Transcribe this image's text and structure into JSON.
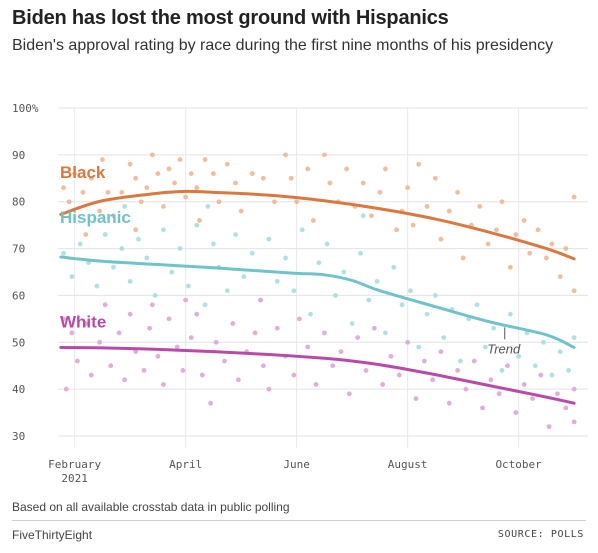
{
  "header": {
    "title": "Biden has lost the most ground with Hispanics",
    "subtitle": "Biden's approval rating by race during the first nine months of his presidency"
  },
  "footer": {
    "note": "Based on all available crosstab data in public polling",
    "brand": "FiveThirtyEight",
    "source": "SOURCE: POLLS"
  },
  "chart_data": {
    "type": "scatter",
    "title": "Biden has lost the most ground with Hispanics",
    "subtitle": "Biden's approval rating by race during the first nine months of his presidency",
    "xlabel": "",
    "ylabel": "",
    "x_unit": "month index (1 = February 1, 2021)",
    "xlim": [
      0.7,
      10.25
    ],
    "ylim": [
      30,
      100
    ],
    "y_ticks": [
      30,
      40,
      50,
      60,
      70,
      80,
      90,
      100
    ],
    "y_tick_labels": [
      "30",
      "40",
      "50",
      "60",
      "70",
      "80",
      "90",
      "100%"
    ],
    "x_ticks": [
      {
        "x": 1.0,
        "label": "February",
        "sublabel": "2021"
      },
      {
        "x": 3.0,
        "label": "April",
        "sublabel": ""
      },
      {
        "x": 5.0,
        "label": "June",
        "sublabel": ""
      },
      {
        "x": 7.0,
        "label": "August",
        "sublabel": ""
      },
      {
        "x": 9.0,
        "label": "October",
        "sublabel": ""
      }
    ],
    "grid": true,
    "annotation": "Trend",
    "series": [
      {
        "name": "Black",
        "color": "#d9783f",
        "dot_color": "#ecb793",
        "trend_x": [
          0.75,
          1.5,
          2.5,
          3.0,
          3.5,
          4.5,
          5.5,
          6.5,
          7.5,
          8.5,
          9.5,
          10.0
        ],
        "trend_y": [
          77.3,
          80.2,
          81.8,
          82.2,
          82.0,
          81.4,
          80.2,
          78.5,
          76.3,
          73.4,
          70.0,
          67.8
        ],
        "points": [
          [
            0.8,
            83
          ],
          [
            0.9,
            80
          ],
          [
            1.0,
            86
          ],
          [
            1.15,
            82
          ],
          [
            1.3,
            85
          ],
          [
            1.45,
            78
          ],
          [
            1.5,
            89
          ],
          [
            1.6,
            82
          ],
          [
            1.7,
            77
          ],
          [
            1.85,
            82
          ],
          [
            2.0,
            88
          ],
          [
            2.1,
            85
          ],
          [
            2.2,
            80
          ],
          [
            2.3,
            83
          ],
          [
            2.4,
            90
          ],
          [
            2.5,
            86
          ],
          [
            2.6,
            79
          ],
          [
            2.7,
            87
          ],
          [
            2.8,
            84
          ],
          [
            2.9,
            89
          ],
          [
            3.0,
            81
          ],
          [
            3.1,
            86
          ],
          [
            3.2,
            83
          ],
          [
            3.35,
            89
          ],
          [
            3.5,
            86
          ],
          [
            3.6,
            80
          ],
          [
            3.75,
            88
          ],
          [
            3.9,
            84
          ],
          [
            4.0,
            78
          ],
          [
            4.2,
            86
          ],
          [
            4.4,
            85
          ],
          [
            4.6,
            80
          ],
          [
            4.8,
            90
          ],
          [
            4.9,
            85
          ],
          [
            5.0,
            80
          ],
          [
            5.2,
            87
          ],
          [
            5.3,
            76
          ],
          [
            5.5,
            90
          ],
          [
            5.6,
            84
          ],
          [
            5.75,
            80
          ],
          [
            5.9,
            87
          ],
          [
            6.05,
            79
          ],
          [
            6.2,
            84
          ],
          [
            6.35,
            77
          ],
          [
            6.5,
            82
          ],
          [
            6.6,
            87
          ],
          [
            6.8,
            74
          ],
          [
            6.9,
            78
          ],
          [
            7.0,
            83
          ],
          [
            7.1,
            75
          ],
          [
            7.2,
            88
          ],
          [
            7.35,
            79
          ],
          [
            7.5,
            85
          ],
          [
            7.6,
            72
          ],
          [
            7.75,
            78
          ],
          [
            7.9,
            82
          ],
          [
            8.0,
            68
          ],
          [
            8.15,
            75
          ],
          [
            8.3,
            79
          ],
          [
            8.45,
            71
          ],
          [
            8.6,
            74
          ],
          [
            8.7,
            80
          ],
          [
            8.85,
            66
          ],
          [
            8.95,
            73
          ],
          [
            9.1,
            76
          ],
          [
            9.2,
            69
          ],
          [
            9.35,
            74
          ],
          [
            9.5,
            68
          ],
          [
            9.6,
            71
          ],
          [
            9.75,
            64
          ],
          [
            9.85,
            70
          ],
          [
            10.0,
            61
          ],
          [
            10.0,
            81
          ],
          [
            3.25,
            76
          ],
          [
            2.1,
            74
          ],
          [
            1.2,
            73
          ]
        ]
      },
      {
        "name": "Hispanic",
        "color": "#6fc3c9",
        "dot_color": "#a9dde1",
        "trend_x": [
          0.75,
          1.5,
          2.5,
          3.5,
          4.5,
          5.0,
          5.5,
          6.0,
          6.5,
          7.5,
          8.5,
          9.5,
          10.0
        ],
        "trend_y": [
          68.2,
          67.3,
          66.6,
          65.9,
          65.1,
          64.7,
          64.4,
          63.2,
          61.0,
          57.6,
          54.3,
          51.6,
          48.9
        ],
        "points": [
          [
            0.8,
            69
          ],
          [
            0.95,
            64
          ],
          [
            1.1,
            71
          ],
          [
            1.25,
            67
          ],
          [
            1.4,
            62
          ],
          [
            1.55,
            73
          ],
          [
            1.7,
            66
          ],
          [
            1.85,
            70
          ],
          [
            2.0,
            63
          ],
          [
            2.15,
            72
          ],
          [
            2.3,
            68
          ],
          [
            2.45,
            60
          ],
          [
            2.6,
            74
          ],
          [
            2.75,
            65
          ],
          [
            2.9,
            70
          ],
          [
            3.05,
            62
          ],
          [
            3.2,
            75
          ],
          [
            3.35,
            58
          ],
          [
            3.5,
            71
          ],
          [
            3.6,
            66
          ],
          [
            3.75,
            61
          ],
          [
            3.9,
            73
          ],
          [
            4.05,
            64
          ],
          [
            4.2,
            69
          ],
          [
            4.35,
            59
          ],
          [
            4.5,
            72
          ],
          [
            4.65,
            63
          ],
          [
            4.8,
            68
          ],
          [
            4.95,
            61
          ],
          [
            5.1,
            74
          ],
          [
            5.25,
            56
          ],
          [
            5.4,
            67
          ],
          [
            5.55,
            71
          ],
          [
            5.7,
            60
          ],
          [
            5.85,
            65
          ],
          [
            6.0,
            54
          ],
          [
            6.15,
            69
          ],
          [
            6.3,
            59
          ],
          [
            6.45,
            63
          ],
          [
            6.6,
            52
          ],
          [
            6.75,
            66
          ],
          [
            6.9,
            58
          ],
          [
            7.05,
            61
          ],
          [
            7.2,
            49
          ],
          [
            7.35,
            56
          ],
          [
            7.5,
            60
          ],
          [
            7.65,
            51
          ],
          [
            7.8,
            57
          ],
          [
            7.95,
            46
          ],
          [
            8.1,
            55
          ],
          [
            8.25,
            58
          ],
          [
            8.4,
            49
          ],
          [
            8.55,
            53
          ],
          [
            8.7,
            44
          ],
          [
            8.85,
            56
          ],
          [
            9.0,
            47
          ],
          [
            9.15,
            52
          ],
          [
            9.3,
            45
          ],
          [
            9.45,
            50
          ],
          [
            9.6,
            43
          ],
          [
            9.75,
            48
          ],
          [
            9.9,
            44
          ],
          [
            10.0,
            51
          ],
          [
            6.2,
            77
          ],
          [
            3.4,
            79
          ],
          [
            1.9,
            79
          ]
        ]
      },
      {
        "name": "White",
        "color": "#b84aaa",
        "dot_color": "#dca6d5",
        "trend_x": [
          0.75,
          1.5,
          2.5,
          3.5,
          4.5,
          5.5,
          6.0,
          6.5,
          7.0,
          7.5,
          8.0,
          8.5,
          9.0,
          9.5,
          10.0
        ],
        "trend_y": [
          48.9,
          48.8,
          48.5,
          48.0,
          47.4,
          46.6,
          46.0,
          45.2,
          44.2,
          43.1,
          41.9,
          40.7,
          39.5,
          38.3,
          37.0
        ],
        "points": [
          [
            0.8,
            55
          ],
          [
            0.85,
            40
          ],
          [
            0.95,
            52
          ],
          [
            1.05,
            46
          ],
          [
            1.2,
            54
          ],
          [
            1.3,
            43
          ],
          [
            1.45,
            50
          ],
          [
            1.55,
            58
          ],
          [
            1.65,
            45
          ],
          [
            1.8,
            52
          ],
          [
            1.9,
            42
          ],
          [
            2.0,
            56
          ],
          [
            2.1,
            48
          ],
          [
            2.25,
            44
          ],
          [
            2.35,
            53
          ],
          [
            2.5,
            47
          ],
          [
            2.6,
            41
          ],
          [
            2.7,
            55
          ],
          [
            2.85,
            49
          ],
          [
            2.95,
            44
          ],
          [
            3.1,
            51
          ],
          [
            3.2,
            56
          ],
          [
            3.3,
            43
          ],
          [
            3.45,
            37
          ],
          [
            3.55,
            50
          ],
          [
            3.7,
            46
          ],
          [
            3.85,
            54
          ],
          [
            3.95,
            42
          ],
          [
            4.1,
            48
          ],
          [
            4.25,
            52
          ],
          [
            4.4,
            45
          ],
          [
            4.5,
            40
          ],
          [
            4.65,
            53
          ],
          [
            4.8,
            47
          ],
          [
            4.95,
            43
          ],
          [
            5.05,
            55
          ],
          [
            5.2,
            49
          ],
          [
            5.35,
            41
          ],
          [
            5.5,
            52
          ],
          [
            5.65,
            45
          ],
          [
            5.8,
            48
          ],
          [
            5.95,
            39
          ],
          [
            6.1,
            51
          ],
          [
            6.25,
            44
          ],
          [
            6.4,
            53
          ],
          [
            6.55,
            41
          ],
          [
            6.7,
            47
          ],
          [
            6.85,
            43
          ],
          [
            7.0,
            50
          ],
          [
            7.15,
            38
          ],
          [
            7.3,
            46
          ],
          [
            7.45,
            42
          ],
          [
            7.6,
            48
          ],
          [
            7.75,
            37
          ],
          [
            7.9,
            44
          ],
          [
            8.05,
            40
          ],
          [
            8.2,
            46
          ],
          [
            8.35,
            36
          ],
          [
            8.5,
            42
          ],
          [
            8.65,
            39
          ],
          [
            8.8,
            45
          ],
          [
            8.95,
            35
          ],
          [
            9.1,
            41
          ],
          [
            9.25,
            38
          ],
          [
            9.4,
            43
          ],
          [
            9.55,
            32
          ],
          [
            9.7,
            39
          ],
          [
            9.85,
            36
          ],
          [
            10.0,
            40
          ],
          [
            10.0,
            33
          ],
          [
            4.35,
            59
          ],
          [
            3.0,
            59
          ],
          [
            2.4,
            58
          ]
        ]
      }
    ]
  }
}
